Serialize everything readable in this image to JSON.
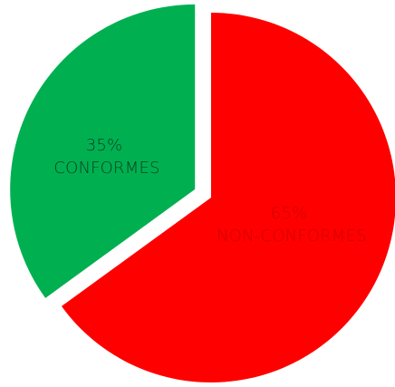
{
  "chart_data": {
    "type": "pie",
    "title": "",
    "slices": [
      {
        "percent_label": "65%",
        "name": "NON-CONFORMES",
        "value": 65,
        "color": "#ff0000",
        "label_color": "#cc0000",
        "exploded": false
      },
      {
        "percent_label": "35%",
        "name": "CONFORMES",
        "value": 35,
        "color": "#00b050",
        "label_color": "#0a3d22",
        "exploded": true
      }
    ],
    "start_angle": "12 o'clock",
    "direction": "clockwise",
    "legend": "none"
  }
}
